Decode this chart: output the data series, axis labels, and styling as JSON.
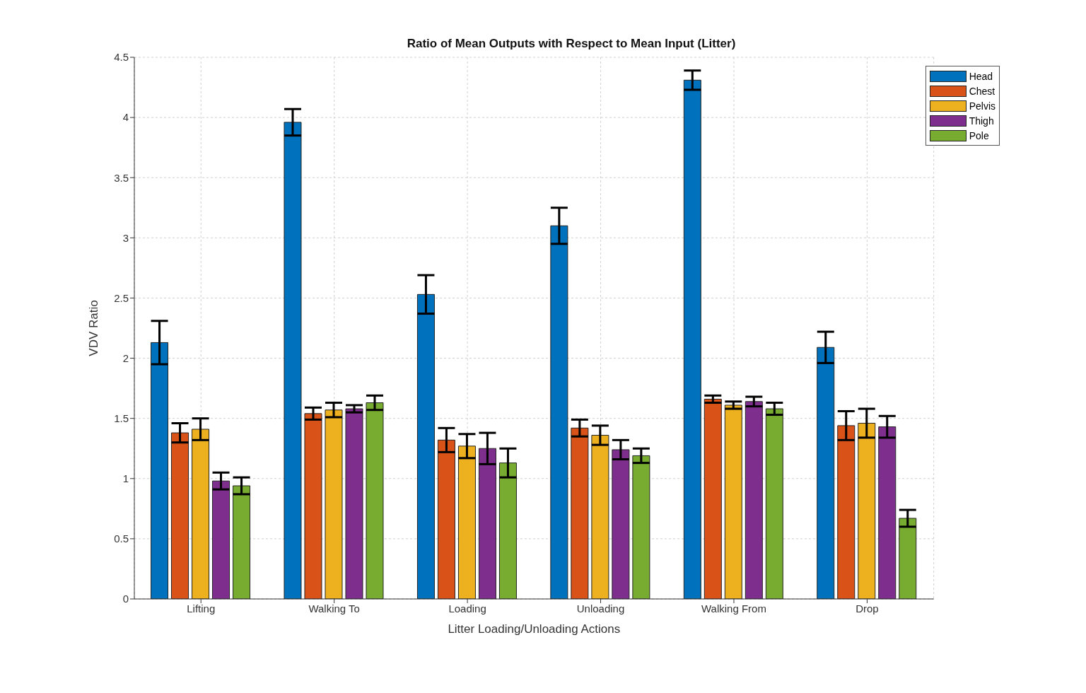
{
  "chart_data": {
    "type": "bar",
    "title": "Ratio of Mean Outputs with Respect to Mean Input (Litter)",
    "xlabel": "Litter Loading/Unloading Actions",
    "ylabel": "VDV Ratio",
    "categories": [
      "Lifting",
      "Walking To",
      "Loading",
      "Unloading",
      "Walking From",
      "Drop"
    ],
    "series": [
      {
        "name": "Head",
        "color": "#0072bd",
        "values": [
          2.13,
          3.96,
          2.53,
          3.1,
          4.31,
          2.09
        ],
        "errors": [
          0.18,
          0.11,
          0.16,
          0.15,
          0.08,
          0.13
        ]
      },
      {
        "name": "Chest",
        "color": "#d95319",
        "values": [
          1.38,
          1.54,
          1.32,
          1.42,
          1.66,
          1.44
        ],
        "errors": [
          0.08,
          0.05,
          0.1,
          0.07,
          0.03,
          0.12
        ]
      },
      {
        "name": "Pelvis",
        "color": "#edb120",
        "values": [
          1.41,
          1.57,
          1.27,
          1.36,
          1.61,
          1.46
        ],
        "errors": [
          0.09,
          0.06,
          0.1,
          0.08,
          0.03,
          0.12
        ]
      },
      {
        "name": "Thigh",
        "color": "#7e2f8e",
        "values": [
          0.98,
          1.58,
          1.25,
          1.24,
          1.64,
          1.43
        ],
        "errors": [
          0.07,
          0.03,
          0.13,
          0.08,
          0.04,
          0.09
        ]
      },
      {
        "name": "Pole",
        "color": "#77ac30",
        "values": [
          0.94,
          1.63,
          1.13,
          1.19,
          1.58,
          0.67
        ],
        "errors": [
          0.07,
          0.06,
          0.12,
          0.06,
          0.05,
          0.07
        ]
      }
    ],
    "ylim": [
      0,
      4.5
    ],
    "yticks": [
      0,
      0.5,
      1,
      1.5,
      2,
      2.5,
      3,
      3.5,
      4,
      4.5
    ],
    "grid": true,
    "legend": "top right"
  }
}
